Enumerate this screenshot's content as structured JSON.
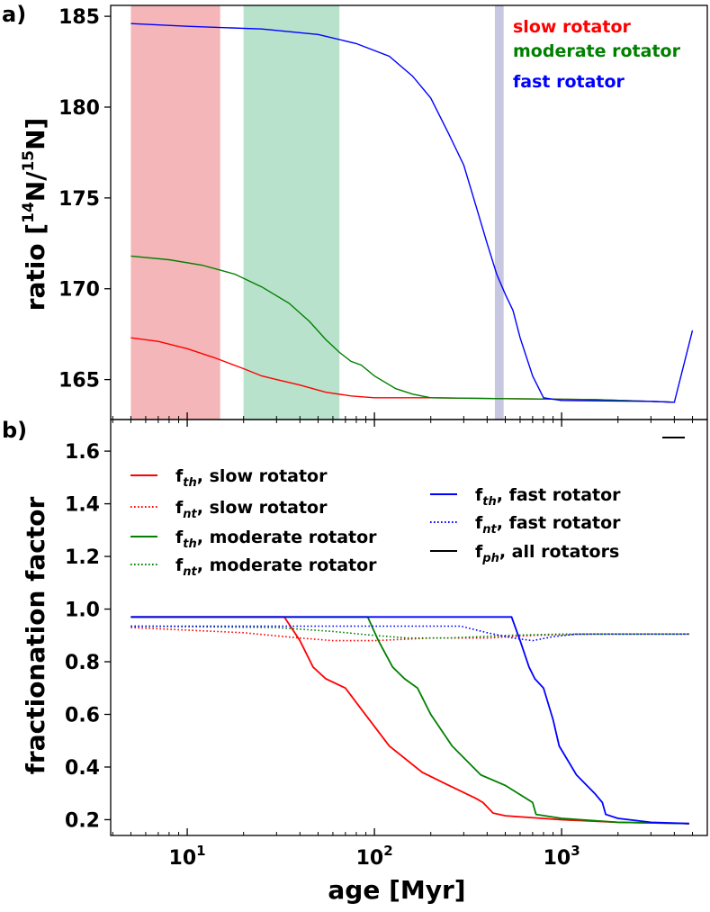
{
  "chart_data": [
    {
      "panel_label": "a)",
      "type": "line",
      "ylabel_main": "ratio [",
      "ylabel_sup1": "14",
      "ylabel_mid": "N/",
      "ylabel_sup2": "15",
      "ylabel_end": "N]",
      "xscale": "log",
      "xlim": [
        3.9,
        6000
      ],
      "ylim": [
        162.8,
        185.6
      ],
      "yticks": [
        165,
        170,
        175,
        180,
        185
      ],
      "ytick_labels": [
        "165",
        "170",
        "175",
        "180",
        "185"
      ],
      "legend": [
        {
          "text": "slow rotator",
          "color": "#ff0000"
        },
        {
          "text": "moderate rotator",
          "color": "#008000"
        },
        {
          "text": "fast rotator",
          "color": "#0000ff"
        }
      ],
      "shaded_spans": [
        {
          "x0": 5,
          "x1": 15,
          "color": "#f4b6b8"
        },
        {
          "x0": 20,
          "x1": 65,
          "color": "#b8e2cc"
        },
        {
          "x0": 440,
          "x1": 490,
          "color": "#c7c7e2"
        }
      ],
      "series": [
        {
          "color": "#ff0000",
          "points": [
            [
              5,
              167.3
            ],
            [
              7,
              167.1
            ],
            [
              10,
              166.7
            ],
            [
              14,
              166.2
            ],
            [
              20,
              165.6
            ],
            [
              25,
              165.2
            ],
            [
              30,
              165.0
            ],
            [
              40,
              164.7
            ],
            [
              55,
              164.3
            ],
            [
              75,
              164.1
            ],
            [
              100,
              164.0
            ],
            [
              200,
              164.0
            ],
            [
              500,
              163.95
            ],
            [
              1500,
              163.9
            ],
            [
              3000,
              163.8
            ],
            [
              4000,
              163.75
            ]
          ]
        },
        {
          "color": "#008000",
          "points": [
            [
              5,
              171.8
            ],
            [
              8,
              171.6
            ],
            [
              12,
              171.3
            ],
            [
              18,
              170.8
            ],
            [
              25,
              170.1
            ],
            [
              35,
              169.2
            ],
            [
              45,
              168.2
            ],
            [
              55,
              167.2
            ],
            [
              65,
              166.5
            ],
            [
              75,
              166.0
            ],
            [
              85,
              165.8
            ],
            [
              100,
              165.2
            ],
            [
              130,
              164.5
            ],
            [
              160,
              164.2
            ],
            [
              200,
              164.0
            ],
            [
              500,
              163.95
            ],
            [
              1500,
              163.9
            ],
            [
              3000,
              163.8
            ],
            [
              4000,
              163.75
            ]
          ]
        },
        {
          "color": "#0000ff",
          "points": [
            [
              5,
              184.6
            ],
            [
              10,
              184.45
            ],
            [
              25,
              184.3
            ],
            [
              50,
              184.0
            ],
            [
              80,
              183.5
            ],
            [
              120,
              182.8
            ],
            [
              160,
              181.7
            ],
            [
              200,
              180.5
            ],
            [
              250,
              178.5
            ],
            [
              300,
              176.8
            ],
            [
              350,
              174.5
            ],
            [
              400,
              172.5
            ],
            [
              450,
              170.8
            ],
            [
              500,
              169.7
            ],
            [
              550,
              168.8
            ],
            [
              600,
              167.3
            ],
            [
              700,
              165.2
            ],
            [
              800,
              164.0
            ],
            [
              1000,
              163.85
            ],
            [
              3000,
              163.8
            ],
            [
              4000,
              163.75
            ],
            [
              5000,
              167.7
            ]
          ]
        }
      ]
    },
    {
      "panel_label": "b)",
      "type": "line",
      "ylabel": "fractionation factor",
      "xlabel": "age [Myr]",
      "xscale": "log",
      "xlim": [
        3.9,
        6000
      ],
      "ylim": [
        0.14,
        1.72
      ],
      "yticks": [
        0.2,
        0.4,
        0.6,
        0.8,
        1.0,
        1.2,
        1.4,
        1.6
      ],
      "ytick_labels": [
        "0.2",
        "0.4",
        "0.6",
        "0.8",
        "1.0",
        "1.2",
        "1.4",
        "1.6"
      ],
      "xticks": [
        10,
        100,
        1000
      ],
      "legend": [
        {
          "sym": "f",
          "sub": "th",
          "text": ", slow rotator",
          "color": "#ff0000",
          "style": "solid"
        },
        {
          "sym": "f",
          "sub": "nt",
          "text": ", slow rotator",
          "color": "#ff0000",
          "style": "dotted"
        },
        {
          "sym": "f",
          "sub": "th",
          "text": ", moderate rotator",
          "color": "#008000",
          "style": "solid"
        },
        {
          "sym": "f",
          "sub": "nt",
          "text": ", moderate rotator",
          "color": "#008000",
          "style": "dotted"
        },
        {
          "sym": "f",
          "sub": "th",
          "text": ", fast rotator",
          "color": "#0000ff",
          "style": "solid"
        },
        {
          "sym": "f",
          "sub": "nt",
          "text": ", fast rotator",
          "color": "#0000ff",
          "style": "dotted"
        },
        {
          "sym": "f",
          "sub": "ph",
          "text": ", all rotators",
          "color": "#000000",
          "style": "solid"
        }
      ],
      "series": [
        {
          "color": "#ff0000",
          "style": "solid",
          "points": [
            [
              5,
              0.97
            ],
            [
              33,
              0.97
            ],
            [
              40,
              0.88
            ],
            [
              47,
              0.78
            ],
            [
              55,
              0.735
            ],
            [
              70,
              0.7
            ],
            [
              85,
              0.62
            ],
            [
              120,
              0.48
            ],
            [
              180,
              0.38
            ],
            [
              250,
              0.33
            ],
            [
              350,
              0.28
            ],
            [
              380,
              0.265
            ],
            [
              430,
              0.225
            ],
            [
              500,
              0.215
            ],
            [
              1000,
              0.2
            ],
            [
              2000,
              0.19
            ],
            [
              4800,
              0.185
            ]
          ]
        },
        {
          "color": "#ff0000",
          "style": "dotted",
          "points": [
            [
              5,
              0.93
            ],
            [
              20,
              0.91
            ],
            [
              40,
              0.89
            ],
            [
              60,
              0.88
            ],
            [
              100,
              0.88
            ],
            [
              200,
              0.89
            ],
            [
              400,
              0.89
            ],
            [
              700,
              0.9
            ],
            [
              1500,
              0.905
            ],
            [
              4800,
              0.905
            ]
          ]
        },
        {
          "color": "#008000",
          "style": "solid",
          "points": [
            [
              5,
              0.97
            ],
            [
              92,
              0.97
            ],
            [
              105,
              0.88
            ],
            [
              125,
              0.78
            ],
            [
              145,
              0.735
            ],
            [
              170,
              0.7
            ],
            [
              200,
              0.6
            ],
            [
              260,
              0.48
            ],
            [
              370,
              0.37
            ],
            [
              500,
              0.33
            ],
            [
              650,
              0.28
            ],
            [
              700,
              0.265
            ],
            [
              730,
              0.22
            ],
            [
              1000,
              0.205
            ],
            [
              2000,
              0.19
            ],
            [
              4800,
              0.185
            ]
          ]
        },
        {
          "color": "#008000",
          "style": "dotted",
          "points": [
            [
              5,
              0.935
            ],
            [
              30,
              0.93
            ],
            [
              60,
              0.915
            ],
            [
              100,
              0.9
            ],
            [
              150,
              0.89
            ],
            [
              250,
              0.89
            ],
            [
              500,
              0.9
            ],
            [
              1000,
              0.905
            ],
            [
              4800,
              0.905
            ]
          ]
        },
        {
          "color": "#0000ff",
          "style": "solid",
          "points": [
            [
              5,
              0.97
            ],
            [
              540,
              0.97
            ],
            [
              600,
              0.88
            ],
            [
              670,
              0.78
            ],
            [
              720,
              0.735
            ],
            [
              800,
              0.7
            ],
            [
              900,
              0.58
            ],
            [
              970,
              0.48
            ],
            [
              1200,
              0.37
            ],
            [
              1500,
              0.3
            ],
            [
              1650,
              0.265
            ],
            [
              1720,
              0.22
            ],
            [
              2000,
              0.205
            ],
            [
              3000,
              0.19
            ],
            [
              4800,
              0.185
            ]
          ]
        },
        {
          "color": "#0000ff",
          "style": "dotted",
          "points": [
            [
              5,
              0.935
            ],
            [
              100,
              0.935
            ],
            [
              290,
              0.935
            ],
            [
              400,
              0.91
            ],
            [
              550,
              0.89
            ],
            [
              700,
              0.88
            ],
            [
              900,
              0.895
            ],
            [
              1200,
              0.905
            ],
            [
              4800,
              0.905
            ]
          ]
        }
      ]
    }
  ]
}
